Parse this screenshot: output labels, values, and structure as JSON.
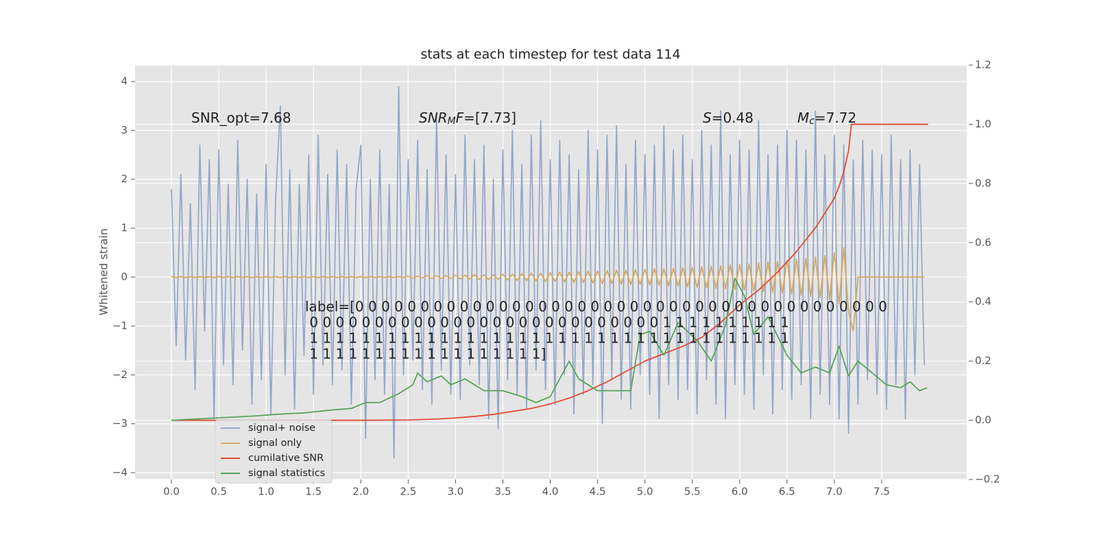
{
  "chart_data": {
    "type": "line",
    "title": "stats at each timestep for test data 114",
    "ylabel": "Whitened strain",
    "xlim": [
      -0.384,
      8.398
    ],
    "ylim": [
      -4.14,
      4.336
    ],
    "y2lim": [
      -0.2,
      1.2
    ],
    "xticks": [
      {
        "value": 0,
        "label": "0.0"
      },
      {
        "value": 0.5,
        "label": "0.5"
      },
      {
        "value": 1,
        "label": "1.0"
      },
      {
        "value": 1.5,
        "label": "1.5"
      },
      {
        "value": 2,
        "label": "2.0"
      },
      {
        "value": 2.5,
        "label": "2.5"
      },
      {
        "value": 3,
        "label": "3.0"
      },
      {
        "value": 3.5,
        "label": "3.5"
      },
      {
        "value": 4,
        "label": "4.0"
      },
      {
        "value": 4.5,
        "label": "4.5"
      },
      {
        "value": 5,
        "label": "5.0"
      },
      {
        "value": 5.5,
        "label": "5.5"
      },
      {
        "value": 6,
        "label": "6.0"
      },
      {
        "value": 6.5,
        "label": "6.5"
      },
      {
        "value": 7,
        "label": "7.0"
      },
      {
        "value": 7.5,
        "label": "7.5"
      }
    ],
    "yticks": [
      {
        "value": -4,
        "label": "−4"
      },
      {
        "value": -3,
        "label": "−3"
      },
      {
        "value": -2,
        "label": "−2"
      },
      {
        "value": -1,
        "label": "−1"
      },
      0,
      1,
      2,
      3,
      4
    ],
    "y2ticks": [
      {
        "value": -0.2,
        "label": "−0.2"
      },
      {
        "value": 0,
        "label": "0.0"
      },
      {
        "value": 0.2,
        "label": "0.2"
      },
      {
        "value": 0.4,
        "label": "0.4"
      },
      {
        "value": 0.6,
        "label": "0.6"
      },
      {
        "value": 0.8,
        "label": "0.8"
      },
      {
        "value": 1,
        "label": "1.0"
      },
      {
        "value": 1.2,
        "label": "1.2"
      }
    ],
    "grid": true,
    "legend": "lower left",
    "annotations": [
      [
        {
          "text": "SNR_opt=7.68"
        }
      ],
      [
        {
          "text": "SNR",
          "italic": true
        },
        {
          "text": "M",
          "italic": true,
          "sub": true
        },
        {
          "text": "F",
          "italic": true
        },
        {
          "text": "=[7.73]"
        }
      ],
      [
        {
          "text": "S",
          "italic": true
        },
        {
          "text": "=0.48"
        }
      ],
      [
        {
          "text": "M",
          "italic": true
        },
        {
          "text": "c",
          "italic": true,
          "sub": true
        },
        {
          "text": "=7.72"
        }
      ]
    ],
    "label_text": [
      "label=[0 0 0 0 0 0 0 0 0 0 0 0 0 0 0 0 0 0 0 0 0 0 0 0 0 0 0 0 0 0 0 0 0 0 0 0 0 0 0 0 0",
      " 0 0 0 0 0 0 0 0 0 0 0 0 0 0 0 0 0 0 0 0 0 0 0 0 0 0 0 1 1 1 1 1 1 1 1 1 1",
      " 1 1 1 1 1 1 1 1 1 1 1 1 1 1 1 1 1 1 1 1 1 1 1 1 1 1 1 1 1 1 1 1 1 1 1 1 1",
      " 1 1 1 1 1 1 1 1 1 1 1 1 1 1 1 1 1 1]"
    ],
    "series": [
      {
        "name": "signal+ noise",
        "color": "#96a8c9",
        "x": [
          0,
          0.05,
          0.1,
          0.15,
          0.2,
          0.25,
          0.3,
          0.35,
          0.4,
          0.45,
          0.5,
          0.55,
          0.6,
          0.65,
          0.7,
          0.75,
          0.8,
          0.85,
          0.9,
          0.95,
          1,
          1.05,
          1.1,
          1.15,
          1.2,
          1.25,
          1.3,
          1.35,
          1.4,
          1.45,
          1.5,
          1.55,
          1.6,
          1.65,
          1.7,
          1.75,
          1.8,
          1.85,
          1.9,
          1.95,
          2,
          2.05,
          2.1,
          2.15,
          2.2,
          2.25,
          2.3,
          2.35,
          2.4,
          2.45,
          2.5,
          2.55,
          2.6,
          2.65,
          2.7,
          2.75,
          2.8,
          2.85,
          2.9,
          2.95,
          3,
          3.05,
          3.1,
          3.15,
          3.2,
          3.25,
          3.3,
          3.35,
          3.4,
          3.45,
          3.5,
          3.55,
          3.6,
          3.65,
          3.7,
          3.75,
          3.8,
          3.85,
          3.9,
          3.95,
          4,
          4.05,
          4.1,
          4.15,
          4.2,
          4.25,
          4.3,
          4.35,
          4.4,
          4.45,
          4.5,
          4.55,
          4.6,
          4.65,
          4.7,
          4.75,
          4.8,
          4.85,
          4.9,
          4.95,
          5,
          5.05,
          5.1,
          5.15,
          5.2,
          5.25,
          5.3,
          5.35,
          5.4,
          5.45,
          5.5,
          5.55,
          5.6,
          5.65,
          5.7,
          5.75,
          5.8,
          5.85,
          5.9,
          5.95,
          6,
          6.05,
          6.1,
          6.15,
          6.2,
          6.25,
          6.3,
          6.35,
          6.4,
          6.45,
          6.5,
          6.55,
          6.6,
          6.65,
          6.7,
          6.75,
          6.8,
          6.85,
          6.9,
          6.95,
          7,
          7.05,
          7.1,
          7.15,
          7.2,
          7.25,
          7.3,
          7.35,
          7.4,
          7.45,
          7.5,
          7.55,
          7.6,
          7.65,
          7.7,
          7.75,
          7.8,
          7.85,
          7.9,
          7.95
        ],
        "values": [
          1.8,
          -1.4,
          2.1,
          -1.7,
          1.5,
          -2.3,
          2.7,
          -1.1,
          2.4,
          -2.9,
          2.6,
          -1.8,
          1.9,
          -2.2,
          2.8,
          -1.5,
          2.0,
          -2.6,
          1.7,
          -2.1,
          2.3,
          -2.8,
          1.6,
          3.5,
          -2.0,
          2.2,
          -2.7,
          1.9,
          -1.6,
          2.5,
          -2.4,
          2.9,
          -1.8,
          2.1,
          -2.2,
          2.6,
          -1.9,
          2.3,
          -2.6,
          1.8,
          2.7,
          -3.3,
          2.0,
          -2.1,
          2.6,
          -2.4,
          1.9,
          -3.7,
          3.9,
          -2.0,
          2.4,
          -1.7,
          2.8,
          -2.3,
          2.2,
          -2.6,
          3.3,
          -1.9,
          2.5,
          -2.4,
          2.1,
          -2.5,
          2.9,
          -1.8,
          2.4,
          -2.2,
          2.7,
          -2.9,
          2.0,
          -3.1,
          2.6,
          -2.1,
          3.0,
          -2.4,
          2.3,
          -2.7,
          2.9,
          -1.9,
          3.2,
          -2.3,
          2.4,
          -2.6,
          2.8,
          -2.0,
          2.5,
          -2.8,
          2.2,
          -2.4,
          3.0,
          -2.2,
          2.6,
          -3.0,
          2.9,
          -2.1,
          3.1,
          -2.5,
          2.3,
          -2.7,
          2.8,
          -2.0,
          2.5,
          -2.4,
          2.7,
          -2.9,
          3.1,
          -2.2,
          2.6,
          -2.5,
          2.9,
          -2.3,
          2.4,
          -2.8,
          3.0,
          -2.1,
          2.7,
          -2.6,
          3.4,
          -2.9,
          2.5,
          -2.2,
          2.8,
          -2.4,
          2.6,
          -2.7,
          3.2,
          -2.0,
          2.5,
          -2.8,
          2.7,
          -2.3,
          3.0,
          -2.5,
          2.8,
          -2.2,
          2.6,
          -2.9,
          3.4,
          -2.4,
          2.5,
          -2.6,
          2.9,
          -2.9,
          2.7,
          -3.2,
          2.4,
          -2.6,
          2.8,
          -2.1,
          2.6,
          -2.4,
          2.5,
          -2.7,
          2.9,
          -2.2,
          2.4,
          -2.9,
          2.6,
          -2.0,
          2.3,
          -1.8
        ]
      },
      {
        "name": "signal only",
        "color": "#d8a95c",
        "x": [
          0,
          0.05,
          0.1,
          0.15,
          0.2,
          0.25,
          0.3,
          0.35,
          0.4,
          0.45,
          0.5,
          0.55,
          0.6,
          0.65,
          0.7,
          0.75,
          0.8,
          0.85,
          0.9,
          0.95,
          1,
          1.05,
          1.1,
          1.15,
          1.2,
          1.25,
          1.3,
          1.35,
          1.4,
          1.45,
          1.5,
          1.55,
          1.6,
          1.65,
          1.7,
          1.75,
          1.8,
          1.85,
          1.9,
          1.95,
          2,
          2.05,
          2.1,
          2.15,
          2.2,
          2.25,
          2.3,
          2.35,
          2.4,
          2.45,
          2.5,
          2.55,
          2.6,
          2.65,
          2.7,
          2.75,
          2.8,
          2.85,
          2.9,
          2.95,
          3,
          3.05,
          3.1,
          3.15,
          3.2,
          3.25,
          3.3,
          3.35,
          3.4,
          3.45,
          3.5,
          3.55,
          3.6,
          3.65,
          3.7,
          3.75,
          3.8,
          3.85,
          3.9,
          3.95,
          4,
          4.05,
          4.1,
          4.15,
          4.2,
          4.25,
          4.3,
          4.35,
          4.4,
          4.45,
          4.5,
          4.55,
          4.6,
          4.65,
          4.7,
          4.75,
          4.8,
          4.85,
          4.9,
          4.95,
          5,
          5.05,
          5.1,
          5.15,
          5.2,
          5.25,
          5.3,
          5.35,
          5.4,
          5.45,
          5.5,
          5.55,
          5.6,
          5.65,
          5.7,
          5.75,
          5.8,
          5.85,
          5.9,
          5.95,
          6,
          6.05,
          6.1,
          6.15,
          6.2,
          6.25,
          6.3,
          6.35,
          6.4,
          6.45,
          6.5,
          6.55,
          6.6,
          6.65,
          6.7,
          6.75,
          6.8,
          6.85,
          6.9,
          6.95,
          7,
          7.05,
          7.1,
          7.15,
          7.2,
          7.25,
          7.3,
          7.35,
          7.4,
          7.45,
          7.5,
          7.55,
          7.6,
          7.65,
          7.7,
          7.75,
          7.8,
          7.85,
          7.9,
          7.95
        ],
        "values": [
          0.01,
          -0.01,
          0.01,
          -0.01,
          0.01,
          -0.01,
          0.01,
          -0.01,
          0.01,
          -0.01,
          0.01,
          -0.01,
          0.01,
          -0.01,
          0.01,
          -0.01,
          0.01,
          -0.01,
          0.01,
          -0.01,
          0.01,
          -0.01,
          0.01,
          -0.01,
          0.01,
          -0.01,
          0.01,
          -0.01,
          0.01,
          -0.01,
          0.01,
          -0.01,
          0.01,
          -0.01,
          0.01,
          -0.01,
          0.01,
          -0.01,
          0.01,
          -0.01,
          0.01,
          -0.01,
          0.01,
          -0.01,
          0.01,
          -0.01,
          0.01,
          -0.01,
          0.01,
          -0.01,
          0.02,
          -0.02,
          0.02,
          -0.02,
          0.03,
          -0.03,
          0.03,
          -0.03,
          0.03,
          -0.03,
          0.04,
          -0.04,
          0.04,
          -0.04,
          0.05,
          -0.05,
          0.05,
          -0.05,
          0.05,
          -0.05,
          0.06,
          -0.06,
          0.06,
          -0.07,
          0.07,
          -0.07,
          0.08,
          -0.08,
          0.08,
          -0.09,
          0.09,
          -0.09,
          0.1,
          -0.1,
          0.1,
          -0.11,
          0.11,
          -0.11,
          0.12,
          -0.12,
          0.12,
          -0.13,
          0.13,
          -0.13,
          0.14,
          -0.14,
          0.14,
          -0.15,
          0.15,
          -0.15,
          0.16,
          -0.16,
          0.17,
          -0.17,
          0.17,
          -0.18,
          0.18,
          -0.19,
          0.19,
          -0.2,
          0.2,
          -0.21,
          0.21,
          -0.22,
          0.22,
          -0.23,
          0.23,
          -0.24,
          0.25,
          -0.25,
          0.26,
          -0.27,
          0.27,
          -0.28,
          0.29,
          -0.3,
          0.3,
          -0.31,
          0.32,
          -0.33,
          0.34,
          -0.35,
          0.36,
          -0.37,
          0.38,
          -0.39,
          0.41,
          -0.42,
          0.44,
          -0.46,
          0.5,
          -0.55,
          0.6,
          -0.7,
          -1.1,
          0,
          0,
          0,
          0,
          0,
          0,
          0,
          0,
          0,
          0,
          0,
          0,
          0,
          0,
          0
        ]
      },
      {
        "name": "cumilative SNR",
        "color": "#e24a33",
        "axis": "y2",
        "x": [
          0,
          0.5,
          1,
          1.5,
          2,
          2.5,
          2.8,
          3,
          3.2,
          3.4,
          3.6,
          3.8,
          4,
          4.2,
          4.4,
          4.6,
          4.8,
          5,
          5.2,
          5.4,
          5.6,
          5.8,
          6,
          6.2,
          6.4,
          6.6,
          6.8,
          6.9,
          7.0,
          7.05,
          7.1,
          7.15,
          7.18,
          7.5,
          7.99
        ],
        "values": [
          0,
          0,
          0,
          0,
          0,
          0.001,
          0.004,
          0.008,
          0.013,
          0.02,
          0.03,
          0.04,
          0.055,
          0.075,
          0.1,
          0.13,
          0.165,
          0.2,
          0.225,
          0.25,
          0.28,
          0.33,
          0.39,
          0.44,
          0.5,
          0.57,
          0.65,
          0.7,
          0.75,
          0.79,
          0.84,
          0.91,
          1.0,
          1.0,
          1.0
        ]
      },
      {
        "name": "signal statistics",
        "color": "#55a457",
        "axis": "y2",
        "x": [
          0,
          0.3,
          0.6,
          0.9,
          1.1,
          1.4,
          1.7,
          1.9,
          2.05,
          2.2,
          2.4,
          2.55,
          2.6,
          2.7,
          2.85,
          2.95,
          3.1,
          3.3,
          3.5,
          3.7,
          3.85,
          4.0,
          4.2,
          4.3,
          4.5,
          4.7,
          4.85,
          4.95,
          5.05,
          5.2,
          5.35,
          5.55,
          5.7,
          5.85,
          5.95,
          6.05,
          6.15,
          6.3,
          6.5,
          6.65,
          6.8,
          6.95,
          7.05,
          7.15,
          7.25,
          7.4,
          7.55,
          7.7,
          7.8,
          7.9,
          7.98
        ],
        "values": [
          0,
          0.005,
          0.01,
          0.015,
          0.02,
          0.025,
          0.035,
          0.04,
          0.06,
          0.06,
          0.09,
          0.12,
          0.16,
          0.13,
          0.15,
          0.12,
          0.14,
          0.1,
          0.1,
          0.08,
          0.06,
          0.08,
          0.2,
          0.14,
          0.1,
          0.1,
          0.1,
          0.29,
          0.3,
          0.22,
          0.33,
          0.27,
          0.2,
          0.32,
          0.48,
          0.42,
          0.29,
          0.35,
          0.22,
          0.16,
          0.18,
          0.16,
          0.25,
          0.15,
          0.2,
          0.16,
          0.12,
          0.11,
          0.13,
          0.1,
          0.11
        ]
      }
    ]
  }
}
